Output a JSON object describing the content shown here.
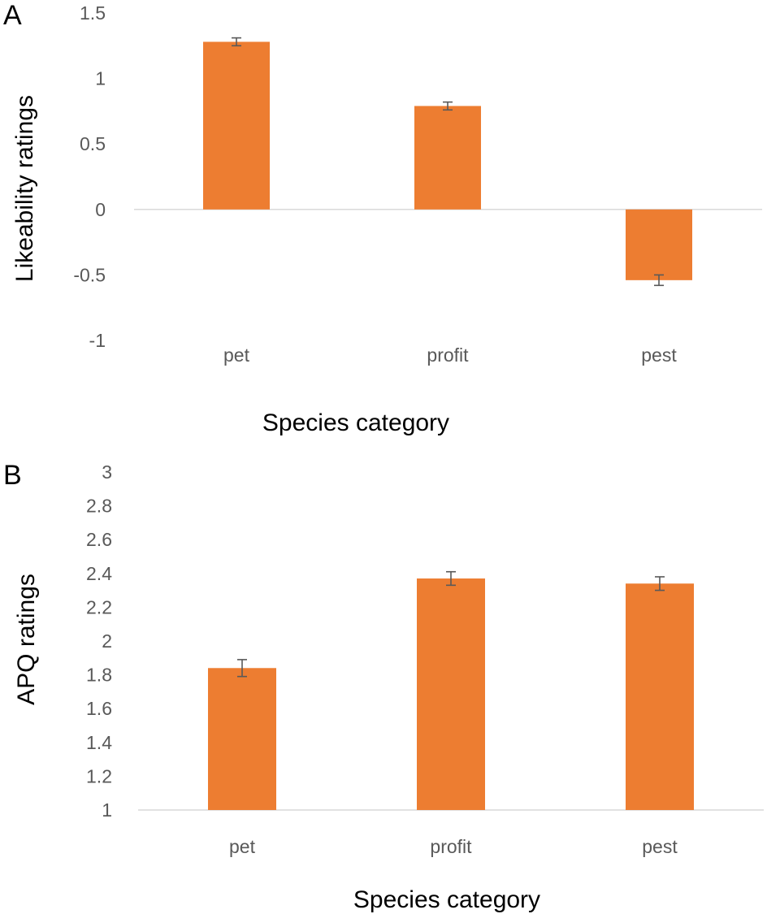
{
  "chart_data": [
    {
      "panel_label": "A",
      "type": "bar",
      "categories": [
        "pet",
        "profit",
        "pest"
      ],
      "values": [
        1.28,
        0.79,
        -0.54
      ],
      "errors": [
        0.03,
        0.03,
        0.04
      ],
      "xlabel": "Species category",
      "ylabel": "Likeability ratings",
      "ylim": [
        -1,
        1.5
      ],
      "yticks": [
        1.5,
        1,
        0.5,
        0,
        -0.5,
        -1
      ],
      "ytick_labels": [
        "1.5",
        "1",
        "0.5",
        "0",
        "-0.5",
        "-1"
      ],
      "grid": false,
      "bar_color": "#ED7D31"
    },
    {
      "panel_label": "B",
      "type": "bar",
      "categories": [
        "pet",
        "profit",
        "pest"
      ],
      "values": [
        1.84,
        2.37,
        2.34
      ],
      "errors": [
        0.05,
        0.04,
        0.04
      ],
      "xlabel": "Species category",
      "ylabel": "APQ ratings",
      "ylim": [
        1,
        3
      ],
      "yticks": [
        3,
        2.8,
        2.6,
        2.4,
        2.2,
        2,
        1.8,
        1.6,
        1.4,
        1.2,
        1
      ],
      "ytick_labels": [
        "3",
        "2.8",
        "2.6",
        "2.4",
        "2.2",
        "2",
        "1.8",
        "1.6",
        "1.4",
        "1.2",
        "1"
      ],
      "grid": false,
      "bar_color": "#ED7D31"
    }
  ],
  "colors": {
    "bar": "#ED7D31",
    "axis_line": "#D9D9D9",
    "error_bar": "#595959",
    "tick_text": "#595959"
  }
}
